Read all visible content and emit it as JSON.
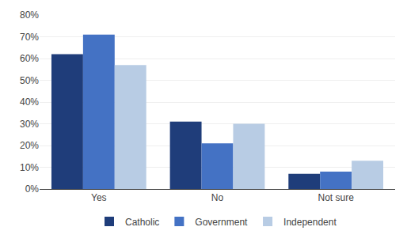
{
  "chart_data": {
    "type": "bar",
    "categories": [
      "Yes",
      "No",
      "Not sure"
    ],
    "series": [
      {
        "name": "Catholic",
        "color": "#1F3D7A",
        "values": [
          62,
          31,
          7
        ]
      },
      {
        "name": "Government",
        "color": "#4472C4",
        "values": [
          71,
          21,
          8
        ]
      },
      {
        "name": "Independent",
        "color": "#B8CCE4",
        "values": [
          57,
          30,
          13
        ]
      }
    ],
    "ylim": [
      0,
      80
    ],
    "yticks": [
      {
        "value": 0,
        "label": "0%"
      },
      {
        "value": 10,
        "label": "10%"
      },
      {
        "value": 20,
        "label": "20%"
      },
      {
        "value": 30,
        "label": "30%"
      },
      {
        "value": 40,
        "label": "40%"
      },
      {
        "value": 50,
        "label": "50%"
      },
      {
        "value": 60,
        "label": "60%"
      },
      {
        "value": 70,
        "label": "70%"
      },
      {
        "value": 80,
        "label": "80%"
      }
    ],
    "grid": true,
    "legend": "bottom"
  }
}
